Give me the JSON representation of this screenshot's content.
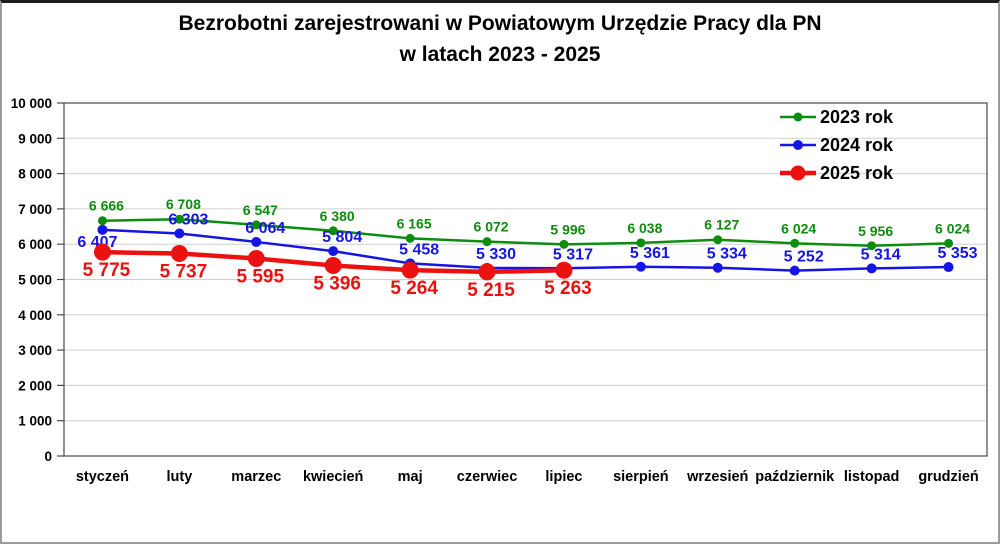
{
  "title": {
    "line1": "Bezrobotni zarejestrowani w Powiatowym Urzędzie Pracy dla PN",
    "line2": "w latach 2023 - 2025"
  },
  "chart_data": {
    "type": "line",
    "title": "Bezrobotni zarejestrowani w Powiatowym Urzędzie Pracy dla PN w latach 2023 - 2025",
    "categories": [
      "styczeń",
      "luty",
      "marzec",
      "kwiecień",
      "maj",
      "czerwiec",
      "lipiec",
      "sierpień",
      "wrzesień",
      "październik",
      "listopad",
      "grudzień"
    ],
    "series": [
      {
        "name": "2023 rok",
        "color": "#0e8c0e",
        "values": [
          6666,
          6708,
          6547,
          6380,
          6165,
          6072,
          5996,
          6038,
          6127,
          6024,
          5956,
          6024
        ]
      },
      {
        "name": "2024 rok",
        "color": "#1515e8",
        "values": [
          6407,
          6303,
          6064,
          5804,
          5458,
          5330,
          5317,
          5361,
          5334,
          5252,
          5314,
          5353
        ]
      },
      {
        "name": "2025 rok",
        "color": "#ec1111",
        "values": [
          5775,
          5737,
          5595,
          5396,
          5264,
          5215,
          5263
        ]
      }
    ],
    "xlabel": "",
    "ylabel": "",
    "ylim": [
      0,
      10000
    ],
    "ytick_step": 1000,
    "yticks": [
      "0",
      "1 000",
      "2 000",
      "3 000",
      "4 000",
      "5 000",
      "6 000",
      "7 000",
      "8 000",
      "9 000",
      "10 000"
    ],
    "grid": true,
    "data_labels": true,
    "legend_position": "top-right",
    "colors": {
      "gridline": "#cfcfcf",
      "plot_border": "#4a4a4a",
      "text": "#000000",
      "background": "#ffffff"
    }
  }
}
